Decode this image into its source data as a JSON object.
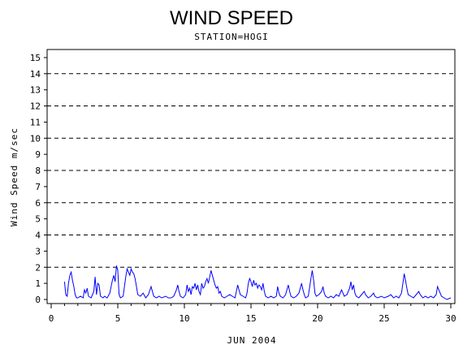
{
  "chart_data": {
    "type": "line",
    "title": "WIND SPEED",
    "subtitle": "STATION=HOGI",
    "xlabel": "JUN 2004",
    "ylabel": "Wind Speed m/sec",
    "xlim": [
      0,
      30
    ],
    "ylim": [
      0,
      15.5
    ],
    "x_ticks": [
      0,
      5,
      10,
      15,
      20,
      25,
      30
    ],
    "y_ticks": [
      0,
      1,
      2,
      3,
      4,
      5,
      6,
      7,
      8,
      9,
      10,
      11,
      12,
      13,
      14,
      15
    ],
    "gridlines_y": [
      2,
      4,
      6,
      8,
      10,
      12,
      14
    ],
    "grid": "dashed horizontal",
    "line_color": "#0000ff",
    "series": [
      {
        "values": [
          [
            1.0,
            1.1
          ],
          [
            1.1,
            0.3
          ],
          [
            1.2,
            0.2
          ],
          [
            1.3,
            1.0
          ],
          [
            1.4,
            1.5
          ],
          [
            1.5,
            1.7
          ],
          [
            1.6,
            1.2
          ],
          [
            1.7,
            0.8
          ],
          [
            1.8,
            0.3
          ],
          [
            1.9,
            0.1
          ],
          [
            2.0,
            0.1
          ],
          [
            2.2,
            0.2
          ],
          [
            2.4,
            0.1
          ],
          [
            2.5,
            0.6
          ],
          [
            2.6,
            0.4
          ],
          [
            2.7,
            0.7
          ],
          [
            2.8,
            0.2
          ],
          [
            3.0,
            0.1
          ],
          [
            3.2,
            0.5
          ],
          [
            3.3,
            1.4
          ],
          [
            3.4,
            0.3
          ],
          [
            3.5,
            1.0
          ],
          [
            3.6,
            0.9
          ],
          [
            3.7,
            0.2
          ],
          [
            3.9,
            0.1
          ],
          [
            4.0,
            0.2
          ],
          [
            4.2,
            0.1
          ],
          [
            4.4,
            0.4
          ],
          [
            4.6,
            1.2
          ],
          [
            4.7,
            1.5
          ],
          [
            4.8,
            1.1
          ],
          [
            4.9,
            2.1
          ],
          [
            5.0,
            1.8
          ],
          [
            5.1,
            0.3
          ],
          [
            5.2,
            0.1
          ],
          [
            5.4,
            0.2
          ],
          [
            5.6,
            1.4
          ],
          [
            5.7,
            1.9
          ],
          [
            5.8,
            1.7
          ],
          [
            5.9,
            1.5
          ],
          [
            6.0,
            1.9
          ],
          [
            6.1,
            1.7
          ],
          [
            6.2,
            1.6
          ],
          [
            6.3,
            1.3
          ],
          [
            6.4,
            0.8
          ],
          [
            6.5,
            0.3
          ],
          [
            6.7,
            0.2
          ],
          [
            6.9,
            0.4
          ],
          [
            7.1,
            0.1
          ],
          [
            7.3,
            0.3
          ],
          [
            7.5,
            0.8
          ],
          [
            7.6,
            0.5
          ],
          [
            7.7,
            0.2
          ],
          [
            7.9,
            0.1
          ],
          [
            8.1,
            0.2
          ],
          [
            8.3,
            0.1
          ],
          [
            8.6,
            0.2
          ],
          [
            8.8,
            0.1
          ],
          [
            9.0,
            0.1
          ],
          [
            9.2,
            0.2
          ],
          [
            9.4,
            0.6
          ],
          [
            9.5,
            0.9
          ],
          [
            9.6,
            0.5
          ],
          [
            9.7,
            0.2
          ],
          [
            9.9,
            0.1
          ],
          [
            10.0,
            0.2
          ],
          [
            10.1,
            0.3
          ],
          [
            10.2,
            0.9
          ],
          [
            10.3,
            0.5
          ],
          [
            10.4,
            0.7
          ],
          [
            10.5,
            0.3
          ],
          [
            10.6,
            0.8
          ],
          [
            10.7,
            0.7
          ],
          [
            10.8,
            1.0
          ],
          [
            10.9,
            0.6
          ],
          [
            11.0,
            0.9
          ],
          [
            11.1,
            0.5
          ],
          [
            11.2,
            0.3
          ],
          [
            11.3,
            1.0
          ],
          [
            11.4,
            0.7
          ],
          [
            11.5,
            0.8
          ],
          [
            11.6,
            1.1
          ],
          [
            11.7,
            1.3
          ],
          [
            11.8,
            1.0
          ],
          [
            11.9,
            1.4
          ],
          [
            12.0,
            1.8
          ],
          [
            12.1,
            1.5
          ],
          [
            12.2,
            1.2
          ],
          [
            12.3,
            0.9
          ],
          [
            12.4,
            0.7
          ],
          [
            12.5,
            0.8
          ],
          [
            12.6,
            0.4
          ],
          [
            12.7,
            0.5
          ],
          [
            12.8,
            0.2
          ],
          [
            13.0,
            0.1
          ],
          [
            13.2,
            0.2
          ],
          [
            13.4,
            0.3
          ],
          [
            13.6,
            0.2
          ],
          [
            13.8,
            0.1
          ],
          [
            13.9,
            0.5
          ],
          [
            14.0,
            0.9
          ],
          [
            14.1,
            0.6
          ],
          [
            14.2,
            0.3
          ],
          [
            14.4,
            0.2
          ],
          [
            14.6,
            0.1
          ],
          [
            14.7,
            0.4
          ],
          [
            14.8,
            1.0
          ],
          [
            14.9,
            1.3
          ],
          [
            15.0,
            1.1
          ],
          [
            15.1,
            0.8
          ],
          [
            15.2,
            1.2
          ],
          [
            15.3,
            0.9
          ],
          [
            15.4,
            1.0
          ],
          [
            15.5,
            0.7
          ],
          [
            15.6,
            0.9
          ],
          [
            15.7,
            0.8
          ],
          [
            15.8,
            0.6
          ],
          [
            15.9,
            1.0
          ],
          [
            16.0,
            0.5
          ],
          [
            16.1,
            0.2
          ],
          [
            16.3,
            0.1
          ],
          [
            16.5,
            0.2
          ],
          [
            16.7,
            0.1
          ],
          [
            16.9,
            0.2
          ],
          [
            17.0,
            0.8
          ],
          [
            17.1,
            0.4
          ],
          [
            17.2,
            0.2
          ],
          [
            17.4,
            0.1
          ],
          [
            17.6,
            0.3
          ],
          [
            17.8,
            0.9
          ],
          [
            17.9,
            0.5
          ],
          [
            18.0,
            0.2
          ],
          [
            18.2,
            0.1
          ],
          [
            18.4,
            0.2
          ],
          [
            18.6,
            0.4
          ],
          [
            18.8,
            1.0
          ],
          [
            18.9,
            0.6
          ],
          [
            19.0,
            0.3
          ],
          [
            19.1,
            0.1
          ],
          [
            19.3,
            0.2
          ],
          [
            19.5,
            1.3
          ],
          [
            19.6,
            1.8
          ],
          [
            19.7,
            1.2
          ],
          [
            19.8,
            0.4
          ],
          [
            19.9,
            0.2
          ],
          [
            20.1,
            0.3
          ],
          [
            20.3,
            0.5
          ],
          [
            20.4,
            0.8
          ],
          [
            20.5,
            0.4
          ],
          [
            20.6,
            0.2
          ],
          [
            20.8,
            0.1
          ],
          [
            21.0,
            0.2
          ],
          [
            21.2,
            0.1
          ],
          [
            21.4,
            0.3
          ],
          [
            21.6,
            0.2
          ],
          [
            21.8,
            0.6
          ],
          [
            21.9,
            0.4
          ],
          [
            22.0,
            0.2
          ],
          [
            22.2,
            0.3
          ],
          [
            22.4,
            0.7
          ],
          [
            22.5,
            1.1
          ],
          [
            22.6,
            0.6
          ],
          [
            22.7,
            0.9
          ],
          [
            22.8,
            0.4
          ],
          [
            22.9,
            0.2
          ],
          [
            23.1,
            0.1
          ],
          [
            23.3,
            0.3
          ],
          [
            23.5,
            0.5
          ],
          [
            23.6,
            0.3
          ],
          [
            23.8,
            0.1
          ],
          [
            24.0,
            0.2
          ],
          [
            24.2,
            0.4
          ],
          [
            24.3,
            0.2
          ],
          [
            24.5,
            0.1
          ],
          [
            24.8,
            0.2
          ],
          [
            25.0,
            0.1
          ],
          [
            25.3,
            0.2
          ],
          [
            25.5,
            0.3
          ],
          [
            25.7,
            0.1
          ],
          [
            25.9,
            0.2
          ],
          [
            26.1,
            0.1
          ],
          [
            26.3,
            0.4
          ],
          [
            26.4,
            1.0
          ],
          [
            26.5,
            1.6
          ],
          [
            26.6,
            1.2
          ],
          [
            26.7,
            0.7
          ],
          [
            26.8,
            0.3
          ],
          [
            27.0,
            0.2
          ],
          [
            27.2,
            0.1
          ],
          [
            27.4,
            0.3
          ],
          [
            27.6,
            0.5
          ],
          [
            27.7,
            0.3
          ],
          [
            27.9,
            0.1
          ],
          [
            28.1,
            0.2
          ],
          [
            28.3,
            0.1
          ],
          [
            28.5,
            0.2
          ],
          [
            28.7,
            0.1
          ],
          [
            28.9,
            0.3
          ],
          [
            29.0,
            0.8
          ],
          [
            29.1,
            0.6
          ],
          [
            29.2,
            0.4
          ],
          [
            29.3,
            0.2
          ],
          [
            29.5,
            0.1
          ],
          [
            29.7,
            0.0
          ],
          [
            30.0,
            0.1
          ]
        ]
      }
    ]
  }
}
